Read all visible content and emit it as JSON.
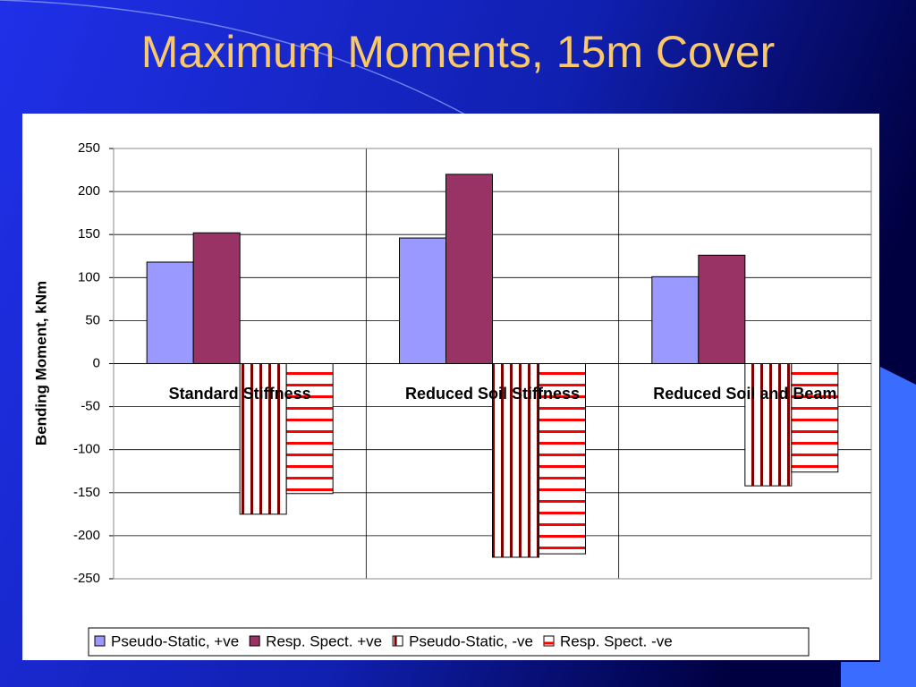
{
  "chart_data": {
    "type": "bar",
    "title": "Maximum Moments, 15m Cover",
    "y_label": "Bending Moment, kNm",
    "categories": [
      "Standard Stiffness",
      "Reduced Soil Stiffness",
      "Reduced Soil and Beam"
    ],
    "series": [
      {
        "name": "Pseudo-Static, +ve",
        "color": "#9999ff",
        "values": [
          118,
          146,
          101
        ]
      },
      {
        "name": "Resp. Spect. +ve",
        "color": "#993366",
        "values": [
          152,
          220,
          126
        ]
      },
      {
        "name": "Pseudo-Static, -ve",
        "color": "#800000",
        "pattern": "vertical",
        "values": [
          -175,
          -225,
          -142
        ]
      },
      {
        "name": "Resp. Spect. -ve",
        "color": "#ff0000",
        "pattern": "horizontal",
        "values": [
          -151,
          -221,
          -126
        ]
      }
    ],
    "ylim": [
      -250,
      250
    ],
    "yticks": [
      -250,
      -200,
      -150,
      -100,
      -50,
      0,
      50,
      100,
      150,
      200,
      250
    ],
    "grid": true
  }
}
